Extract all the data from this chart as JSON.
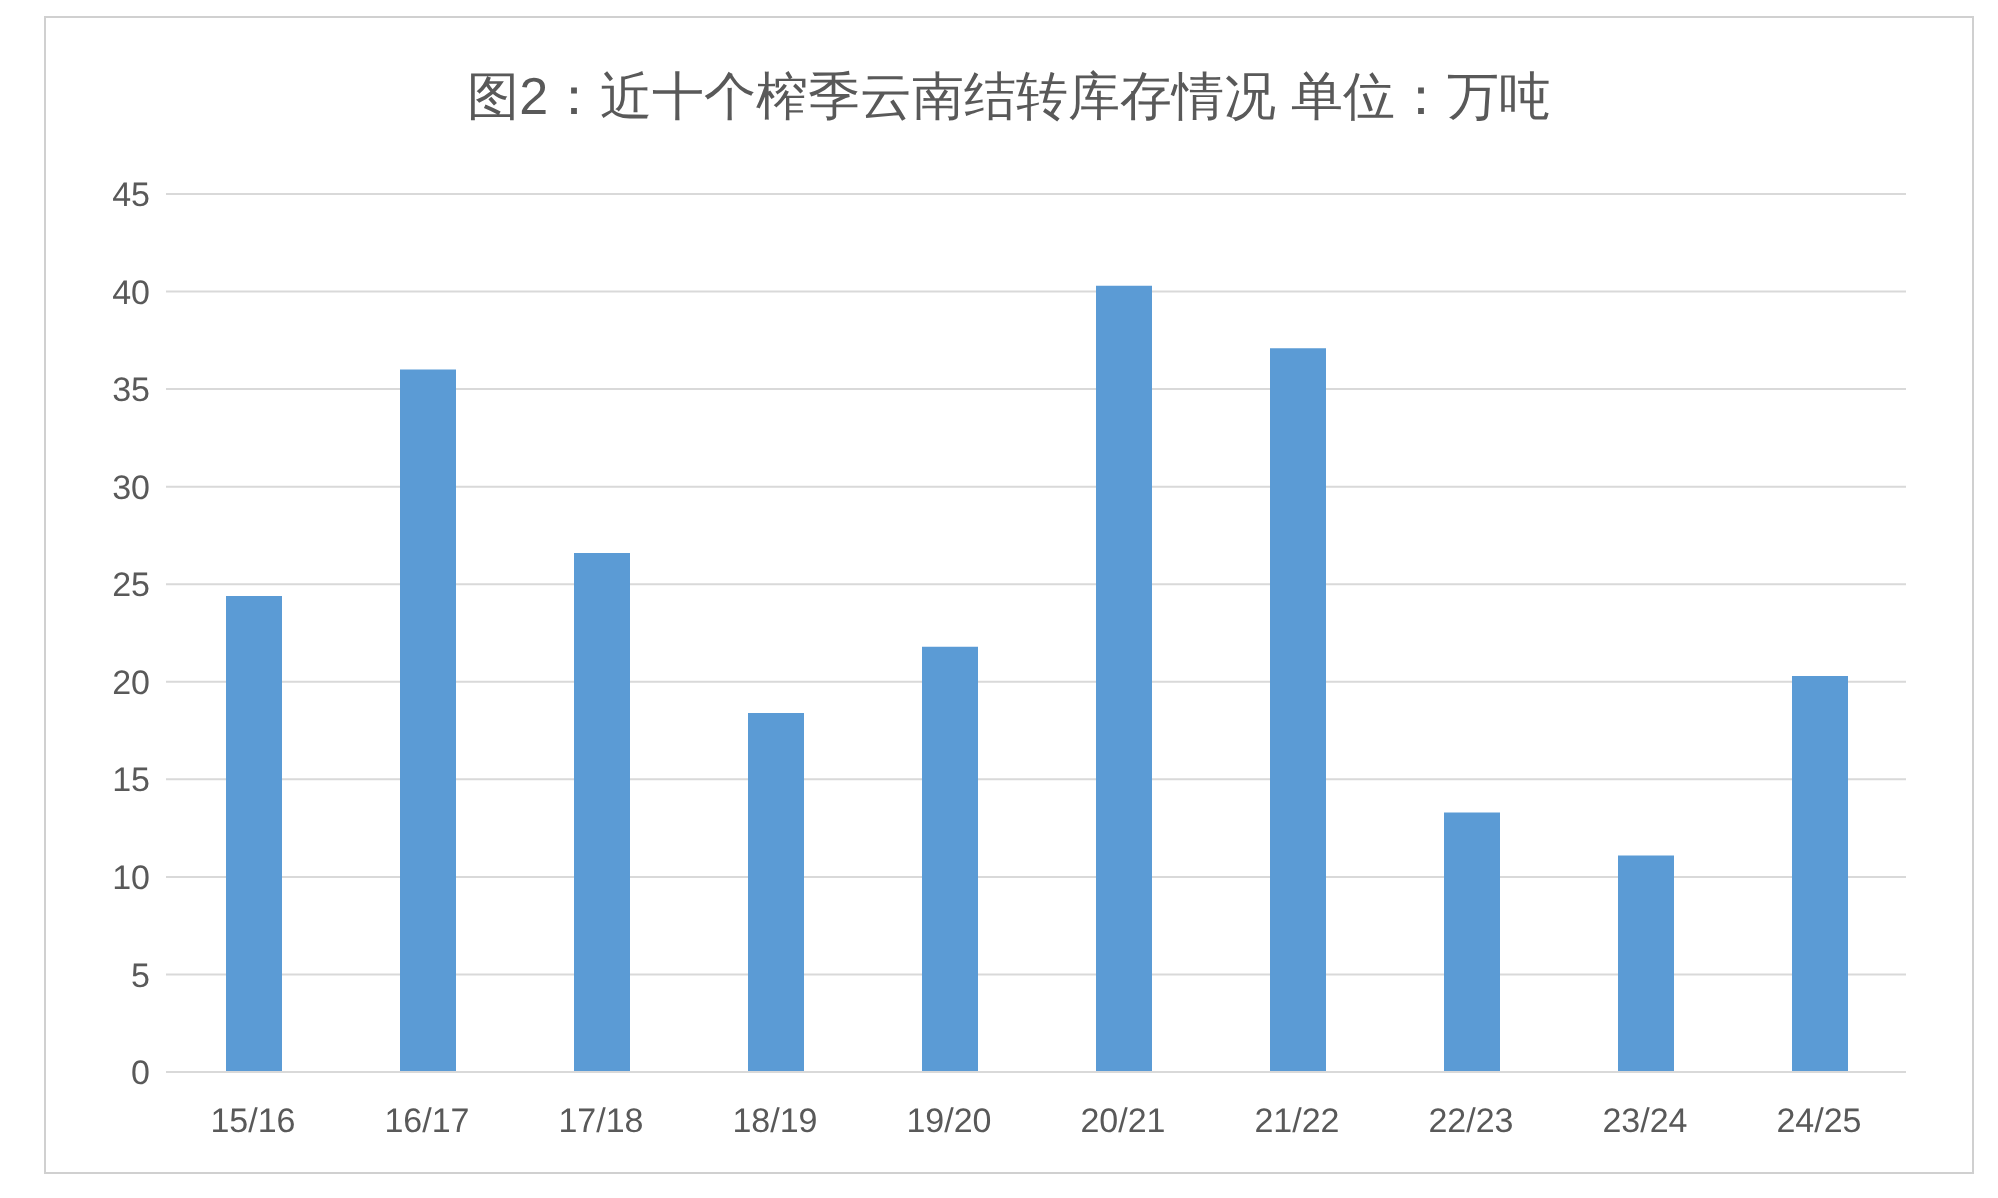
{
  "chart_data": {
    "type": "bar",
    "title": "图2：近十个榨季云南结转库存情况  单位：万吨",
    "categories": [
      "15/16",
      "16/17",
      "17/18",
      "18/19",
      "19/20",
      "20/21",
      "21/22",
      "22/23",
      "23/24",
      "24/25"
    ],
    "values": [
      24.4,
      36,
      26.6,
      18.4,
      21.8,
      40.3,
      37.1,
      13.3,
      11.1,
      20.3
    ],
    "color": "#5b9bd5",
    "ylim": [
      0,
      45
    ],
    "yticks": [
      0,
      5,
      10,
      15,
      20,
      25,
      30,
      35,
      40,
      45
    ],
    "grid": "y"
  }
}
